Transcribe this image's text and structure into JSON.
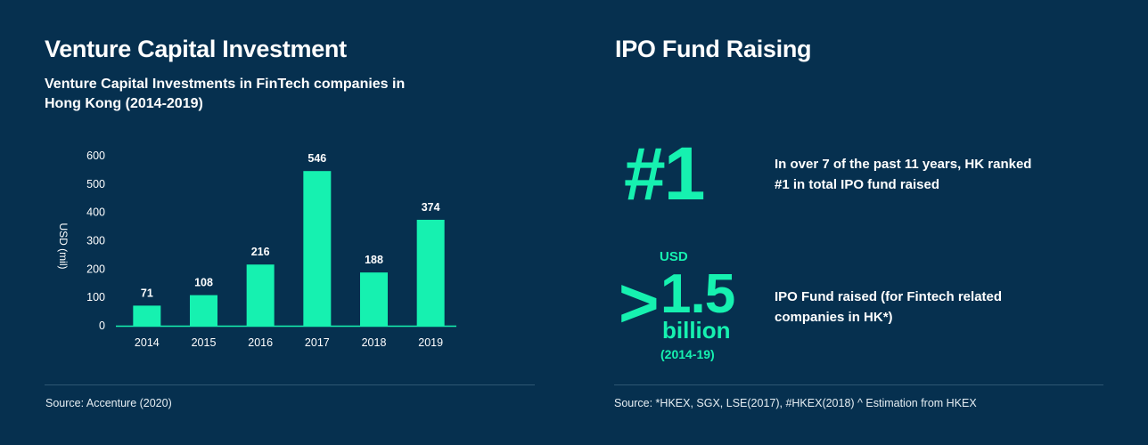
{
  "left_panel": {
    "title": "Venture Capital Investment",
    "subtitle": "Venture Capital Investments in FinTech companies in Hong Kong (2014-2019)",
    "source": "Source: Accenture (2020)"
  },
  "chart_data": {
    "type": "bar",
    "title": "Venture Capital Investments in FinTech companies in Hong Kong (2014-2019)",
    "categories": [
      "2014",
      "2015",
      "2016",
      "2017",
      "2018",
      "2019"
    ],
    "values": [
      71,
      108,
      216,
      546,
      188,
      374
    ],
    "data_labels": [
      "71",
      "108",
      "216",
      "546",
      "188",
      "374"
    ],
    "xlabel": "",
    "ylabel": "USD (mil)",
    "ylim": [
      0,
      600
    ],
    "yticks": [
      "0",
      "100",
      "200",
      "300",
      "400",
      "500",
      "600"
    ],
    "grid": false,
    "legend": "none",
    "bar_color": "#16F1B0"
  },
  "right_panel": {
    "title": "IPO Fund Raising",
    "rank_value": "#1",
    "rank_text": "In over 7 of the past 11 years, HK ranked #1 in total IPO fund raised",
    "currency": "USD",
    "symbol": ">",
    "amount": "1.5",
    "unit": "billion",
    "period": "(2014-19)",
    "ipo_text": "IPO Fund raised (for Fintech related companies in HK*)",
    "source": "Source: *HKEX, SGX, LSE(2017), #HKEX(2018) ^ Estimation from HKEX"
  },
  "colors": {
    "background": "#06304F",
    "accent": "#16F1B0",
    "text": "#FFFFFF",
    "divider": "#2E5672"
  }
}
